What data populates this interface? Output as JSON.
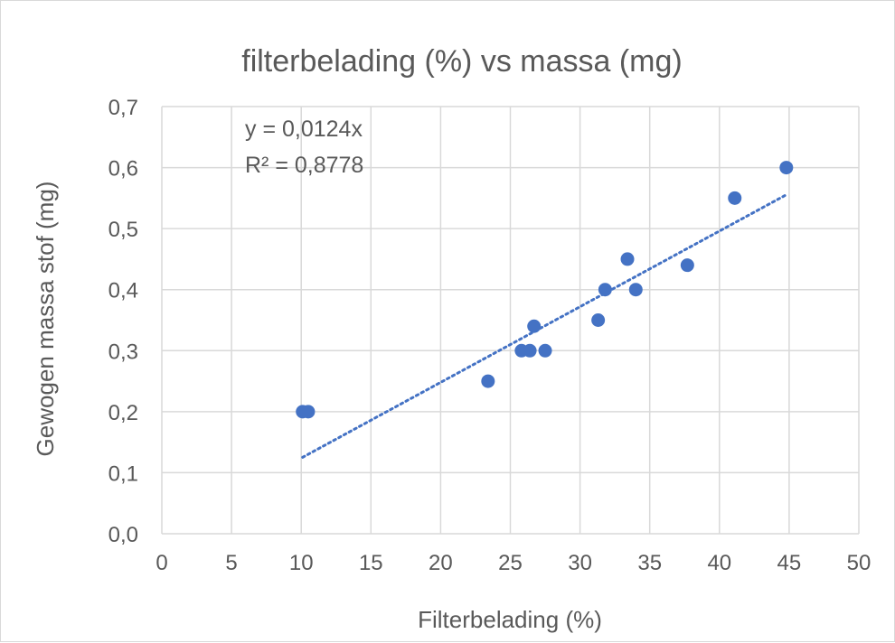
{
  "chart_data": {
    "type": "scatter",
    "title": "filterbelading (%) vs massa (mg)",
    "xlabel": "Filterbelading (%)",
    "ylabel": "Gewogen massa stof (mg)",
    "xlim": [
      0,
      50
    ],
    "ylim": [
      0,
      0.7
    ],
    "x_ticks": [
      0,
      5,
      10,
      15,
      20,
      25,
      30,
      35,
      40,
      45,
      50
    ],
    "y_ticks": [
      0.0,
      0.1,
      0.2,
      0.3,
      0.4,
      0.5,
      0.6,
      0.7
    ],
    "x_tick_labels": [
      "0",
      "5",
      "10",
      "15",
      "20",
      "25",
      "30",
      "35",
      "40",
      "45",
      "50"
    ],
    "y_tick_labels": [
      "0,0",
      "0,1",
      "0,2",
      "0,3",
      "0,4",
      "0,5",
      "0,6",
      "0,7"
    ],
    "grid": true,
    "legend": "none",
    "series": [
      {
        "marker_color": "#4472c4",
        "x": [
          10.1,
          10.5,
          23.4,
          25.8,
          26.4,
          27.5,
          26.7,
          31.3,
          31.8,
          34.0,
          33.4,
          37.7,
          41.1,
          44.8
        ],
        "y": [
          0.2,
          0.2,
          0.25,
          0.3,
          0.3,
          0.3,
          0.34,
          0.35,
          0.4,
          0.4,
          0.45,
          0.44,
          0.55,
          0.6
        ]
      }
    ],
    "trendline": {
      "type": "linear",
      "color": "#4472c4",
      "style": "dotted",
      "slope": 0.0124,
      "intercept": 0,
      "x_range": [
        10.1,
        44.8
      ],
      "equation": "y = 0,0124x",
      "r_squared": "R² = 0,8778"
    }
  }
}
